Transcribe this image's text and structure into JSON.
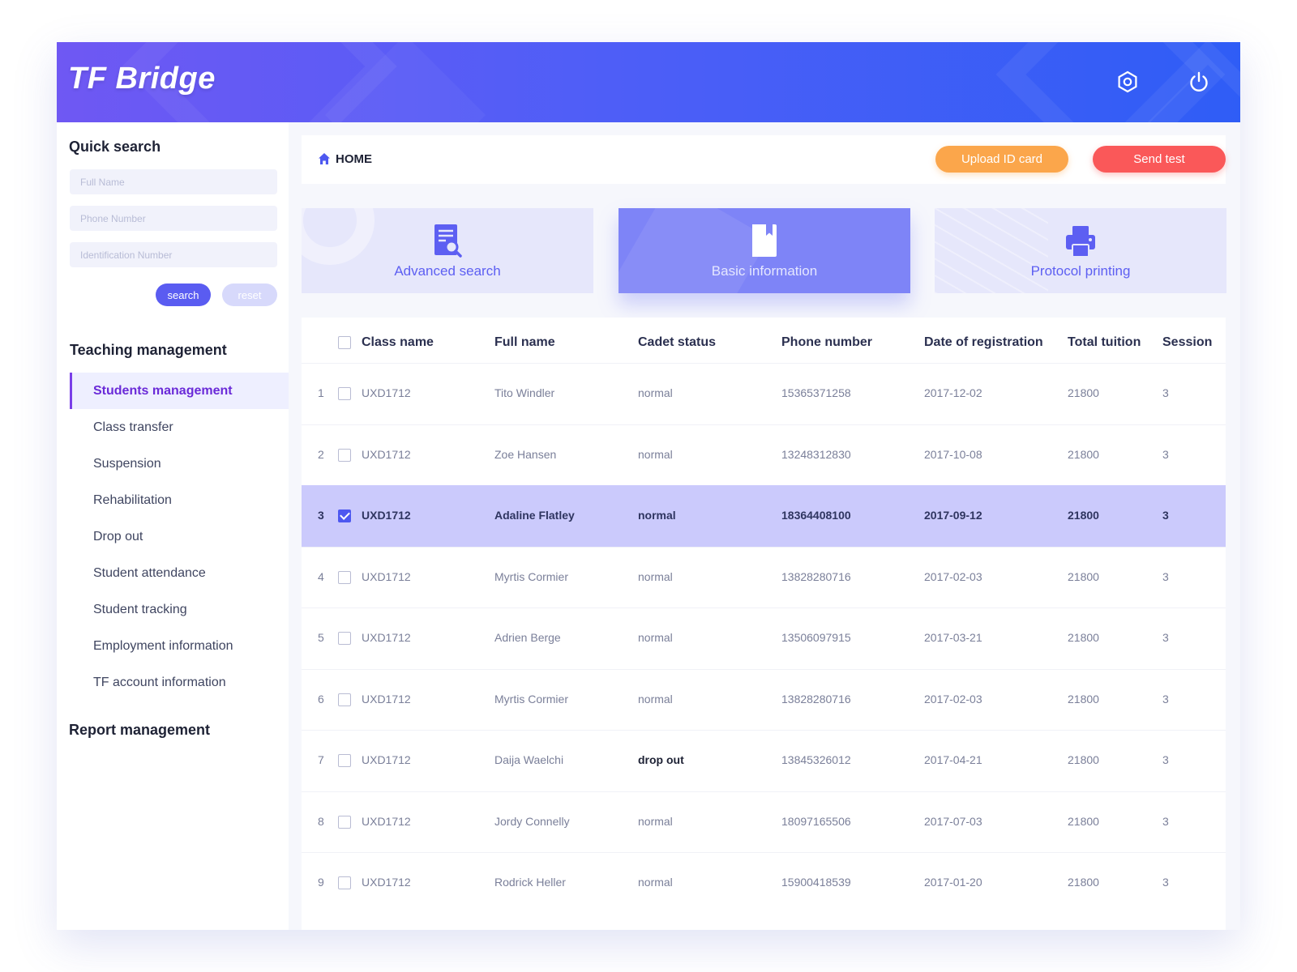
{
  "app": {
    "title": "TF Bridge"
  },
  "header": {
    "icons": [
      "settings-icon",
      "power-icon"
    ]
  },
  "sidebar": {
    "quick_search_title": "Quick search",
    "placeholders": {
      "full_name": "Full Name",
      "phone_number": "Phone Number",
      "id_number": "Identification Number"
    },
    "search_label": "search",
    "reset_label": "reset",
    "teaching_title": "Teaching management",
    "items": [
      {
        "label": "Students management",
        "active": true
      },
      {
        "label": "Class transfer"
      },
      {
        "label": "Suspension"
      },
      {
        "label": "Rehabilitation"
      },
      {
        "label": "Drop out"
      },
      {
        "label": "Student attendance"
      },
      {
        "label": "Student tracking"
      },
      {
        "label": "Employment information"
      },
      {
        "label": "TF account information"
      }
    ],
    "report_title": "Report management"
  },
  "toolbar": {
    "home_label": "HOME",
    "upload_label": "Upload ID card",
    "send_label": "Send test"
  },
  "cards": [
    {
      "label": "Advanced search",
      "icon": "document-search-icon"
    },
    {
      "label": "Basic information",
      "icon": "book-icon",
      "active": true
    },
    {
      "label": "Protocol printing",
      "icon": "printer-icon"
    }
  ],
  "colors": {
    "accent": "#5a5cf1",
    "upload": "#fba64b",
    "send": "#fa5859",
    "selected_row": "#cbcafc",
    "active_nav": "#6a2ad8"
  },
  "table": {
    "headers": [
      "Class name",
      "Full name",
      "Cadet status",
      "Phone number",
      "Date of registration",
      "Total tuition",
      "Session"
    ],
    "rows": [
      {
        "index": "1",
        "checked": false,
        "class_name": "UXD1712",
        "full_name": "Tito Windler",
        "status": "normal",
        "phone": "15365371258",
        "date": "2017-12-02",
        "tuition": "21800",
        "session": "3"
      },
      {
        "index": "2",
        "checked": false,
        "class_name": "UXD1712",
        "full_name": "Zoe Hansen",
        "status": "normal",
        "phone": "13248312830",
        "date": "2017-10-08",
        "tuition": "21800",
        "session": "3"
      },
      {
        "index": "3",
        "checked": true,
        "class_name": "UXD1712",
        "full_name": "Adaline Flatley",
        "status": "normal",
        "phone": "18364408100",
        "date": "2017-09-12",
        "tuition": "21800",
        "session": "3"
      },
      {
        "index": "4",
        "checked": false,
        "class_name": "UXD1712",
        "full_name": "Myrtis Cormier",
        "status": "normal",
        "phone": "13828280716",
        "date": "2017-02-03",
        "tuition": "21800",
        "session": "3"
      },
      {
        "index": "5",
        "checked": false,
        "class_name": "UXD1712",
        "full_name": "Adrien Berge",
        "status": "normal",
        "phone": "13506097915",
        "date": "2017-03-21",
        "tuition": "21800",
        "session": "3"
      },
      {
        "index": "6",
        "checked": false,
        "class_name": "UXD1712",
        "full_name": "Myrtis Cormier",
        "status": "normal",
        "phone": "13828280716",
        "date": "2017-02-03",
        "tuition": "21800",
        "session": "3"
      },
      {
        "index": "7",
        "checked": false,
        "class_name": "UXD1712",
        "full_name": "Daija Waelchi",
        "status": "drop out",
        "phone": "13845326012",
        "date": "2017-04-21",
        "tuition": "21800",
        "session": "3"
      },
      {
        "index": "8",
        "checked": false,
        "class_name": "UXD1712",
        "full_name": "Jordy Connelly",
        "status": "normal",
        "phone": "18097165506",
        "date": "2017-07-03",
        "tuition": "21800",
        "session": "3"
      },
      {
        "index": "9",
        "checked": false,
        "class_name": "UXD1712",
        "full_name": "Rodrick Heller",
        "status": "normal",
        "phone": "15900418539",
        "date": "2017-01-20",
        "tuition": "21800",
        "session": "3"
      }
    ]
  }
}
